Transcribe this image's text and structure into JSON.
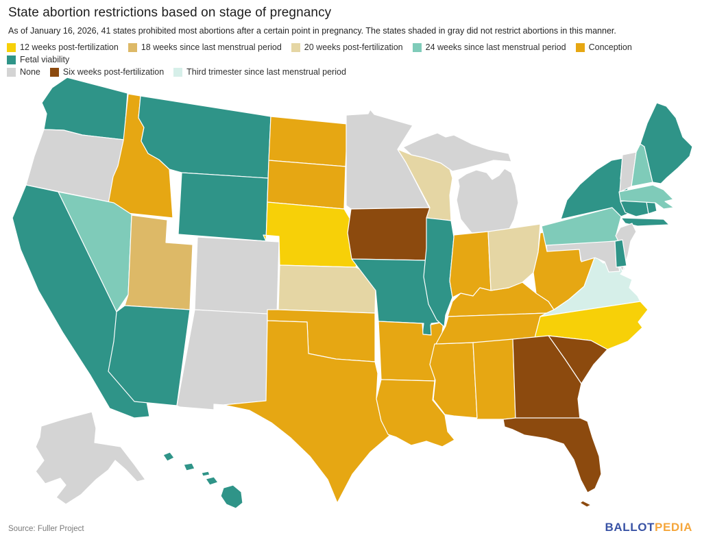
{
  "header": {
    "title": "State abortion restrictions based on stage of pregnancy",
    "subtitle": "As of January 16, 2026, 41 states prohibited most abortions after a certain point in pregnancy. The states shaded in gray did not restrict abortions in this manner."
  },
  "legend": {
    "rows": [
      [
        {
          "id": "twelve_weeks",
          "label": "12 weeks post-fertilization",
          "color": "#F7D008"
        },
        {
          "id": "eighteen_weeks",
          "label": "18 weeks since last menstrual period",
          "color": "#DDB967"
        },
        {
          "id": "twenty_weeks",
          "label": "20 weeks post-fertilization",
          "color": "#E5D6A4"
        },
        {
          "id": "twenty_four_weeks",
          "label": "24 weeks since last menstrual period",
          "color": "#7FCBB9"
        },
        {
          "id": "conception",
          "label": "Conception",
          "color": "#E6A713"
        },
        {
          "id": "fetal_viability",
          "label": "Fetal viability",
          "color": "#2F9488"
        }
      ],
      [
        {
          "id": "none",
          "label": "None",
          "color": "#D4D4D4"
        },
        {
          "id": "six_weeks",
          "label": "Six weeks post-fertilization",
          "color": "#8C4A0E"
        },
        {
          "id": "third_trimester",
          "label": "Third trimester since last menstrual period",
          "color": "#D6EFE9"
        }
      ]
    ]
  },
  "chart_data": {
    "type": "choropleth-map",
    "title": "State abortion restrictions based on stage of pregnancy",
    "states": {
      "WA": "fetal_viability",
      "OR": "none",
      "CA": "fetal_viability",
      "NV": "twenty_four_weeks",
      "ID": "conception",
      "MT": "fetal_viability",
      "WY": "fetal_viability",
      "UT": "eighteen_weeks",
      "AZ": "fetal_viability",
      "NM": "none",
      "CO": "none",
      "ND": "conception",
      "SD": "conception",
      "NE": "twelve_weeks",
      "KS": "twenty_weeks",
      "OK": "conception",
      "TX": "conception",
      "MN": "none",
      "IA": "six_weeks",
      "MO": "fetal_viability",
      "AR": "conception",
      "LA": "conception",
      "WI": "twenty_weeks",
      "IL": "fetal_viability",
      "MS": "conception",
      "MI": "none",
      "IN": "conception",
      "KY": "conception",
      "TN": "conception",
      "AL": "conception",
      "OH": "twenty_weeks",
      "WV": "conception",
      "GA": "six_weeks",
      "FL": "six_weeks",
      "SC": "six_weeks",
      "NC": "twelve_weeks",
      "VA": "third_trimester",
      "MD": "none",
      "DE": "fetal_viability",
      "PA": "twenty_four_weeks",
      "NJ": "none",
      "NY": "fetal_viability",
      "CT": "fetal_viability",
      "RI": "fetal_viability",
      "MA": "twenty_four_weeks",
      "VT": "none",
      "NH": "twenty_four_weeks",
      "ME": "fetal_viability",
      "AK": "none",
      "HI": "fetal_viability"
    }
  },
  "footer": {
    "source": "Source: Fuller Project",
    "logo": {
      "ballot": "BALLOT",
      "pedia": "PEDIA",
      "ballot_color": "#3852A4",
      "pedia_color": "#F5A63B"
    }
  }
}
